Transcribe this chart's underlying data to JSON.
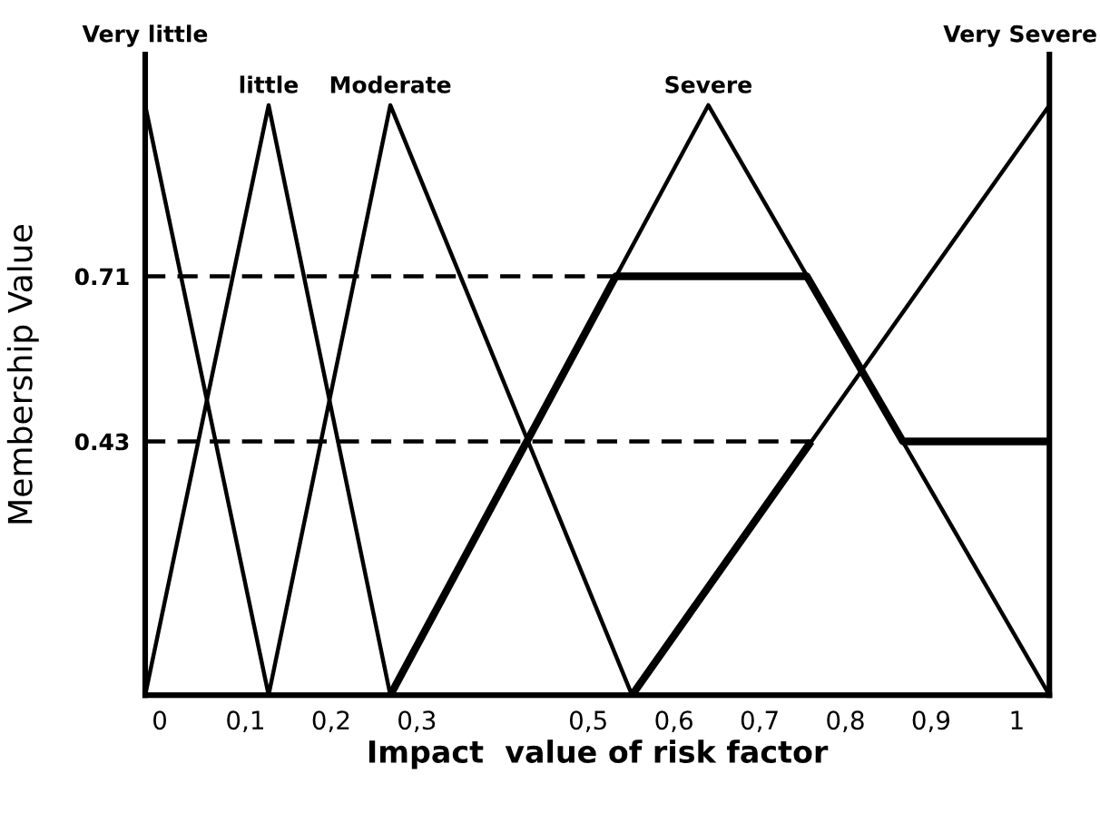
{
  "chart_data": {
    "type": "line",
    "xlabel": "Impact  value of risk factor",
    "ylabel": "Membership Value",
    "xlim": [
      -0.017,
      1.038
    ],
    "ylim": [
      0,
      1.086
    ],
    "xticks": [
      0,
      {
        "value": 0.1,
        "label": "0,1"
      },
      {
        "value": 0.2,
        "label": "0,2"
      },
      {
        "value": 0.3,
        "label": "0,3"
      },
      {
        "value": 0.5,
        "label": "0,5"
      },
      {
        "value": 0.6,
        "label": "0,6"
      },
      {
        "value": 0.7,
        "label": "0,7"
      },
      {
        "value": 0.8,
        "label": "0,8"
      },
      {
        "value": 0.9,
        "label": "0,9"
      },
      1
    ],
    "yticks": [
      0.43,
      0.71
    ],
    "grid": false,
    "legend": false,
    "marker": "none",
    "series": [
      {
        "name": "Very little",
        "color": "#000000",
        "x": [
          -0.017,
          0.127
        ],
        "values": [
          1,
          0
        ]
      },
      {
        "name": "little",
        "color": "#000000",
        "x": [
          -0.017,
          0.127,
          0.269
        ],
        "values": [
          0,
          1,
          0
        ]
      },
      {
        "name": "Moderate",
        "color": "#000000",
        "x": [
          0.127,
          0.269,
          0.551
        ],
        "values": [
          0,
          1,
          0
        ]
      },
      {
        "name": "Severe",
        "color": "#000000",
        "x": [
          0.269,
          0.64,
          1.038
        ],
        "values": [
          0,
          1,
          0
        ]
      },
      {
        "name": "Very Severe",
        "color": "#000000",
        "x": [
          0.551,
          1.038
        ],
        "values": [
          0,
          1
        ]
      },
      {
        "color": "#000000",
        "line_style": "dashed",
        "x": [
          -0.017,
          0.532
        ],
        "values": [
          0.71,
          0.71
        ]
      },
      {
        "color": "#000000",
        "line_style": "dashed",
        "x": [
          -0.017,
          0.76
        ],
        "values": [
          0.43,
          0.43
        ]
      },
      {
        "color": "#000000",
        "x": [
          0.269,
          0.532,
          0.755,
          0.867,
          1.038,
          null,
          0.551,
          0.76
        ],
        "values": [
          0,
          0.71,
          0.71,
          0.43,
          0.43,
          null,
          0,
          0.43
        ]
      }
    ]
  }
}
